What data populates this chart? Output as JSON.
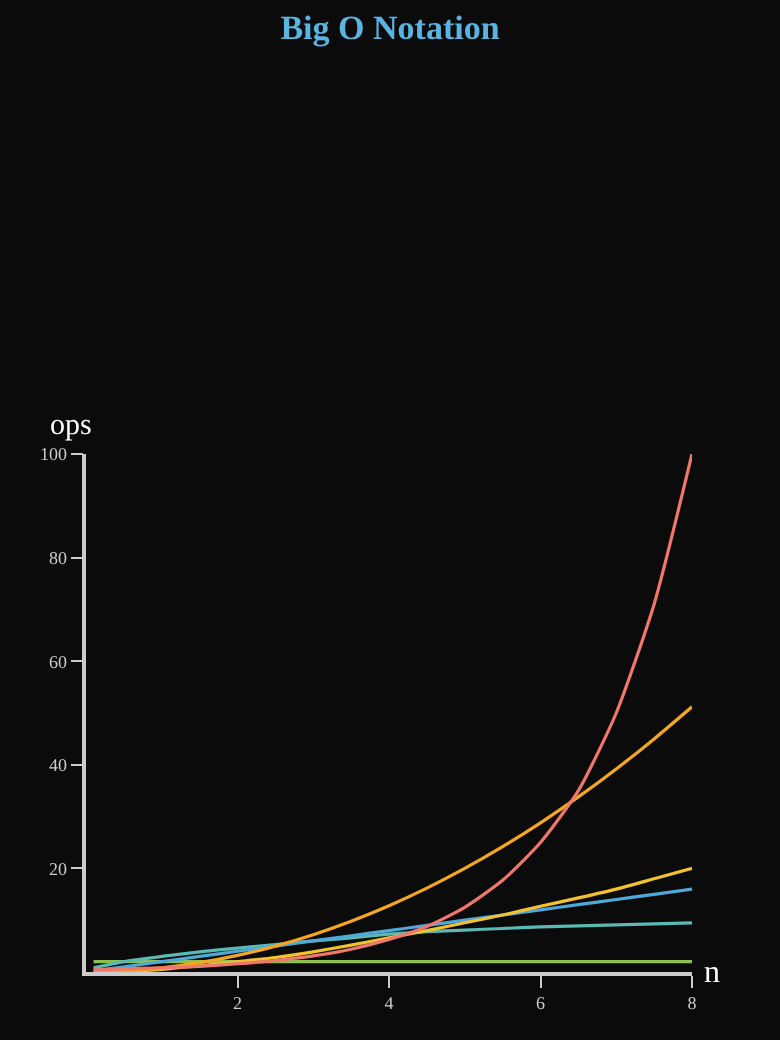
{
  "chart_data": {
    "type": "line",
    "title": "Big O Notation",
    "xlabel": "n",
    "ylabel": "ops",
    "x": [
      0.1,
      0.5,
      1,
      1.5,
      2,
      2.5,
      3,
      3.5,
      4,
      4.5,
      5,
      5.5,
      6,
      6.5,
      7,
      7.5,
      8
    ],
    "series": [
      {
        "color": "#8bc34a",
        "values": [
          2,
          2,
          2,
          2,
          2,
          2,
          2,
          2,
          2,
          2,
          2,
          2,
          2,
          2,
          2,
          2,
          2
        ]
      },
      {
        "color": "#5cb8b2",
        "values": [
          0.8,
          2,
          3,
          3.9,
          4.6,
          5.3,
          6,
          6.6,
          7.3,
          7.8,
          8.1,
          8.4,
          8.7,
          8.9,
          9.1,
          9.3,
          9.5
        ]
      },
      {
        "color": "#4fa8d8",
        "values": [
          0.2,
          1,
          2,
          3,
          4,
          5,
          6,
          7,
          8,
          9,
          10,
          11,
          12,
          13,
          14,
          15,
          16
        ]
      },
      {
        "color": "#f2c230",
        "values": [
          0,
          0.1,
          0.5,
          1.2,
          2,
          2.8,
          3.9,
          5.2,
          6.6,
          8,
          9.5,
          11,
          12.7,
          14.3,
          16,
          18,
          20
        ]
      },
      {
        "color": "#f5a623",
        "values": [
          0,
          0.2,
          0.8,
          1.8,
          3.2,
          5,
          7.2,
          9.8,
          12.8,
          16.2,
          20,
          24.2,
          28.8,
          33.8,
          39.2,
          45,
          51.2
        ]
      },
      {
        "color": "#f0776c",
        "values": [
          0.4,
          0.6,
          0.8,
          1.1,
          1.6,
          2.2,
          3.1,
          4.4,
          6.3,
          8.8,
          12.5,
          17.7,
          25,
          35,
          50,
          71,
          100
        ]
      }
    ],
    "xlim": [
      0,
      8
    ],
    "xticks": [
      2,
      4,
      6,
      8
    ],
    "ylim": [
      0,
      100
    ],
    "yticks": [
      20,
      40,
      60,
      80,
      100
    ],
    "grid": false,
    "marker": "none",
    "line_style": "solid"
  }
}
